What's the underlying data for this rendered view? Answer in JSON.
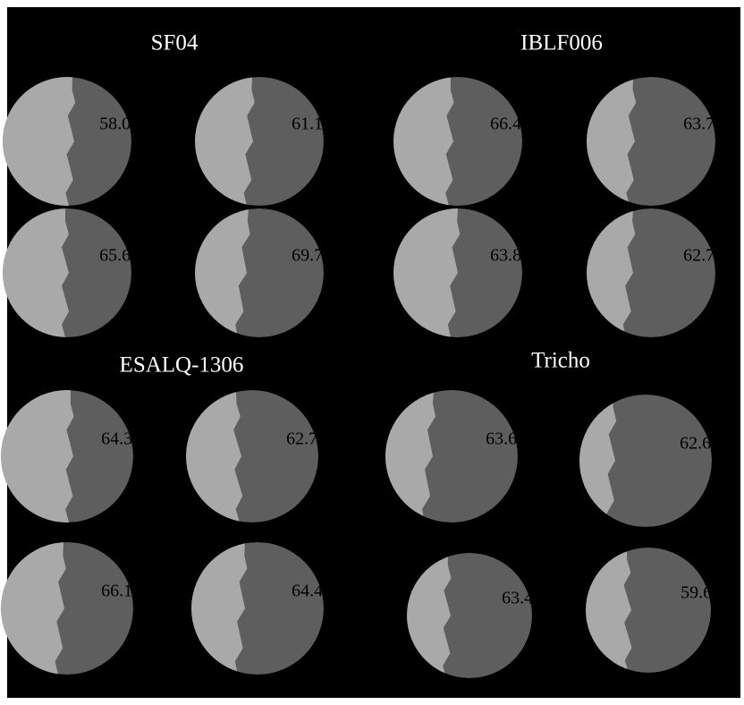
{
  "groups": [
    {
      "title": "SF04",
      "dishes": [
        {
          "label": "58.0%"
        },
        {
          "label": "61.1%"
        },
        {
          "label": "65.6%"
        },
        {
          "label": "69.7%"
        }
      ]
    },
    {
      "title": "IBLF006",
      "dishes": [
        {
          "label": "66.4%"
        },
        {
          "label": "63.7%"
        },
        {
          "label": "63.8%"
        },
        {
          "label": "62.7%"
        }
      ]
    },
    {
      "title": "ESALQ-1306",
      "dishes": [
        {
          "label": "64.3%"
        },
        {
          "label": "62.7%"
        },
        {
          "label": "66.1%"
        },
        {
          "label": "64.4%"
        }
      ]
    },
    {
      "title": "Tricho",
      "dishes": [
        {
          "label": "63.6%"
        },
        {
          "label": "62.6%"
        },
        {
          "label": "63.4%"
        },
        {
          "label": "59.6%"
        }
      ]
    }
  ]
}
